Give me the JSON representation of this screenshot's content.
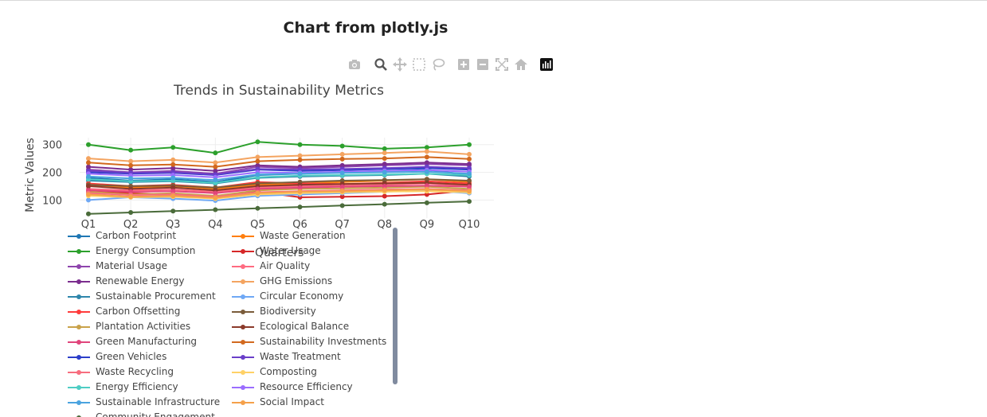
{
  "page_title": "Chart from plotly.js",
  "modebar": {
    "buttons": [
      "camera-icon",
      "zoom-icon",
      "pan-icon",
      "box-select-icon",
      "lasso-icon",
      "zoom-in-icon",
      "zoom-out-icon",
      "autoscale-icon",
      "reset-axes-icon",
      "plotly-logo-icon"
    ]
  },
  "chart_data": {
    "type": "line",
    "title": "Trends in Sustainability Metrics",
    "xlabel": "Quarters",
    "ylabel": "Metric Values",
    "categories": [
      "Q1",
      "Q2",
      "Q3",
      "Q4",
      "Q5",
      "Q6",
      "Q7",
      "Q8",
      "Q9",
      "Q10"
    ],
    "yticks": [
      100,
      200,
      300
    ],
    "ylim": [
      35,
      325
    ],
    "grid": true,
    "legend_placement": "bottom",
    "series": [
      {
        "name": "Carbon Footprint",
        "color": "#1f77b4",
        "values": [
          180,
          170,
          175,
          165,
          190,
          195,
          200,
          205,
          210,
          190
        ]
      },
      {
        "name": "Waste Generation",
        "color": "#ff7f0e",
        "values": [
          150,
          145,
          150,
          140,
          155,
          160,
          165,
          170,
          175,
          165
        ]
      },
      {
        "name": "Energy Consumption",
        "color": "#2ca02c",
        "values": [
          300,
          280,
          290,
          270,
          310,
          300,
          295,
          285,
          290,
          300
        ]
      },
      {
        "name": "Water Usage",
        "color": "#d62728",
        "values": [
          130,
          125,
          120,
          115,
          130,
          110,
          112,
          114,
          120,
          135
        ]
      },
      {
        "name": "Material Usage",
        "color": "#8e44ad",
        "values": [
          210,
          200,
          205,
          195,
          220,
          215,
          220,
          225,
          230,
          225
        ]
      },
      {
        "name": "Air Quality",
        "color": "#ff6b81",
        "values": [
          140,
          135,
          138,
          130,
          145,
          150,
          152,
          155,
          160,
          150
        ]
      },
      {
        "name": "Renewable Energy",
        "color": "#7b2d8e",
        "values": [
          220,
          210,
          215,
          205,
          225,
          220,
          225,
          230,
          235,
          230
        ]
      },
      {
        "name": "GHG Emissions",
        "color": "#f4a460",
        "values": [
          250,
          240,
          245,
          235,
          255,
          260,
          265,
          270,
          275,
          265
        ]
      },
      {
        "name": "Sustainable Procurement",
        "color": "#2e86ab",
        "values": [
          170,
          165,
          168,
          160,
          180,
          185,
          188,
          190,
          195,
          185
        ]
      },
      {
        "name": "Circular Economy",
        "color": "#6fa8f5",
        "values": [
          100,
          110,
          105,
          98,
          115,
          120,
          125,
          130,
          135,
          125
        ]
      },
      {
        "name": "Carbon Offsetting",
        "color": "#ff3b3b",
        "values": [
          160,
          150,
          155,
          145,
          165,
          160,
          158,
          162,
          168,
          160
        ]
      },
      {
        "name": "Biodiversity",
        "color": "#7a5c3a",
        "values": [
          155,
          150,
          152,
          145,
          160,
          165,
          170,
          172,
          175,
          170
        ]
      },
      {
        "name": "Plantation Activities",
        "color": "#c9a24a",
        "values": [
          130,
          120,
          125,
          115,
          135,
          140,
          142,
          145,
          148,
          140
        ]
      },
      {
        "name": "Ecological Balance",
        "color": "#8b3a2b",
        "values": [
          150,
          140,
          145,
          135,
          150,
          155,
          158,
          160,
          162,
          155
        ]
      },
      {
        "name": "Green Manufacturing",
        "color": "#e0457b",
        "values": [
          135,
          130,
          132,
          125,
          140,
          145,
          148,
          150,
          152,
          148
        ]
      },
      {
        "name": "Sustainability Investments",
        "color": "#d2691e",
        "values": [
          235,
          225,
          228,
          220,
          240,
          245,
          248,
          250,
          255,
          248
        ]
      },
      {
        "name": "Green Vehicles",
        "color": "#2c3ec9",
        "values": [
          200,
          195,
          198,
          190,
          210,
          205,
          208,
          212,
          215,
          210
        ]
      },
      {
        "name": "Waste Treatment",
        "color": "#6a3fc9",
        "values": [
          205,
          198,
          200,
          192,
          212,
          210,
          212,
          215,
          220,
          215
        ]
      },
      {
        "name": "Waste Recycling",
        "color": "#f76d7e",
        "values": [
          125,
          118,
          120,
          112,
          128,
          132,
          135,
          138,
          140,
          135
        ]
      },
      {
        "name": "Composting",
        "color": "#ffd166",
        "values": [
          115,
          110,
          112,
          105,
          120,
          125,
          128,
          130,
          132,
          128
        ]
      },
      {
        "name": "Energy Efficiency",
        "color": "#4ecdc4",
        "values": [
          175,
          168,
          170,
          162,
          182,
          188,
          190,
          192,
          195,
          190
        ]
      },
      {
        "name": "Resource Efficiency",
        "color": "#9b6dff",
        "values": [
          195,
          188,
          190,
          182,
          200,
          198,
          202,
          205,
          208,
          202
        ]
      },
      {
        "name": "Sustainable Infrastructure",
        "color": "#4aa3df",
        "values": [
          185,
          178,
          180,
          172,
          192,
          195,
          198,
          200,
          202,
          195
        ]
      },
      {
        "name": "Social Impact",
        "color": "#f5a04a",
        "values": [
          120,
          112,
          115,
          108,
          125,
          130,
          132,
          135,
          138,
          132
        ]
      },
      {
        "name": "Community Engagement",
        "color": "#4a6b3a",
        "values": [
          50,
          55,
          60,
          65,
          70,
          75,
          80,
          85,
          90,
          95
        ]
      }
    ]
  }
}
